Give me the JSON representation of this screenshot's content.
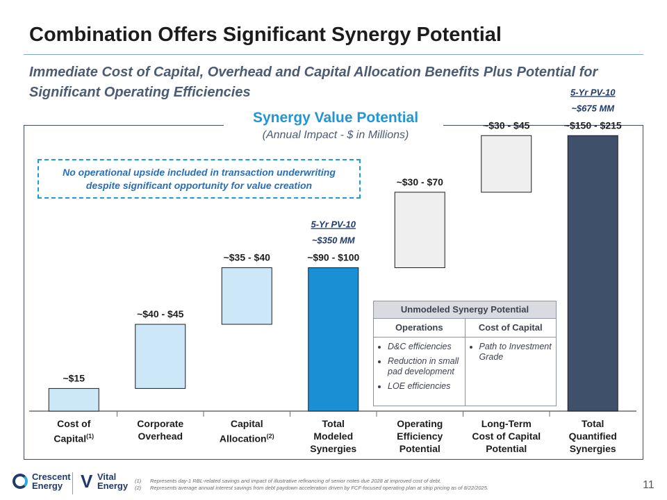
{
  "header": {
    "title": "Combination Offers Significant Synergy Potential",
    "subtitle": "Immediate Cost of Capital, Overhead and Capital Allocation Benefits Plus Potential for Significant Operating Efficiencies"
  },
  "section": {
    "title": "Synergy Value Potential",
    "subtitle": "(Annual Impact - $ in Millions)"
  },
  "note_box": "No operational upside included in transaction underwriting despite significant opportunity for value creation",
  "colors": {
    "light_bar": "#cce7f7",
    "accent_bar": "#1a8fd4",
    "gray_bar": "#efefef",
    "dark_bar": "#3f506a"
  },
  "chart_data": {
    "type": "bar",
    "subtype": "waterfall",
    "title": "Synergy Value Potential",
    "subtitle": "(Annual Impact - $ in Millions)",
    "ylim": [
      0,
      230
    ],
    "categories": [
      {
        "line1": "Cost of",
        "line2": "Capital",
        "sup": "(1)",
        "line3": ""
      },
      {
        "line1": "Corporate",
        "line2": "Overhead",
        "sup": "",
        "line3": ""
      },
      {
        "line1": "Capital",
        "line2": "Allocation",
        "sup": "(2)",
        "line3": ""
      },
      {
        "line1": "Total",
        "line2": "Modeled",
        "sup": "",
        "line3": "Synergies"
      },
      {
        "line1": "Operating",
        "line2": "Efficiency",
        "sup": "",
        "line3": "Potential"
      },
      {
        "line1": "Long-Term",
        "line2": "Cost of Capital",
        "sup": "",
        "line3": "Potential"
      },
      {
        "line1": "Total",
        "line2": "Quantified",
        "sup": "",
        "line3": "Synergies"
      }
    ],
    "bars": [
      {
        "label": "~$15",
        "base": 0,
        "value": 15,
        "style": "light"
      },
      {
        "label": "~$40 - $45",
        "base": 15,
        "value": 42.5,
        "style": "light"
      },
      {
        "label": "~$35 - $40",
        "base": 57.5,
        "value": 37.5,
        "style": "light"
      },
      {
        "label": "~$90 - $100",
        "base": 0,
        "value": 95,
        "style": "accent"
      },
      {
        "label": "~$30 - $70",
        "base": 95,
        "value": 50,
        "style": "gray"
      },
      {
        "label": "~$30 - $45",
        "base": 145,
        "value": 37.5,
        "style": "gray"
      },
      {
        "label": "~$150 - $215",
        "base": 0,
        "value": 182.5,
        "style": "dark"
      }
    ],
    "annotations": [
      {
        "bar": 3,
        "line1": "5-Yr PV-10",
        "line2": "~$350 MM"
      },
      {
        "bar": 6,
        "line1": "5-Yr PV-10",
        "line2": "~$675 MM"
      }
    ]
  },
  "unmodeled": {
    "title": "Unmodeled Synergy Potential",
    "col1_header": "Operations",
    "col2_header": "Cost of Capital",
    "col1_items": [
      "D&C efficiencies",
      "Reduction in small pad development",
      "LOE efficiencies"
    ],
    "col2_items": [
      "Path to Investment Grade"
    ]
  },
  "footnotes": [
    {
      "num": "(1)",
      "text": "Represents day-1 RBL-related savings and impact of illustrative refinancing of senior notes due 2028 at improved cost of debt."
    },
    {
      "num": "(2)",
      "text": "Represents average annual interest savings from debt paydown acceleration driven by FCF-focused operating plan at strip pricing as of 8/22/2025."
    }
  ],
  "logos": {
    "crescent_line1": "Crescent",
    "crescent_line2": "Energy",
    "vital_line1": "Vital",
    "vital_line2": "Energy",
    "vital_mark": "V"
  },
  "page_number": "11"
}
